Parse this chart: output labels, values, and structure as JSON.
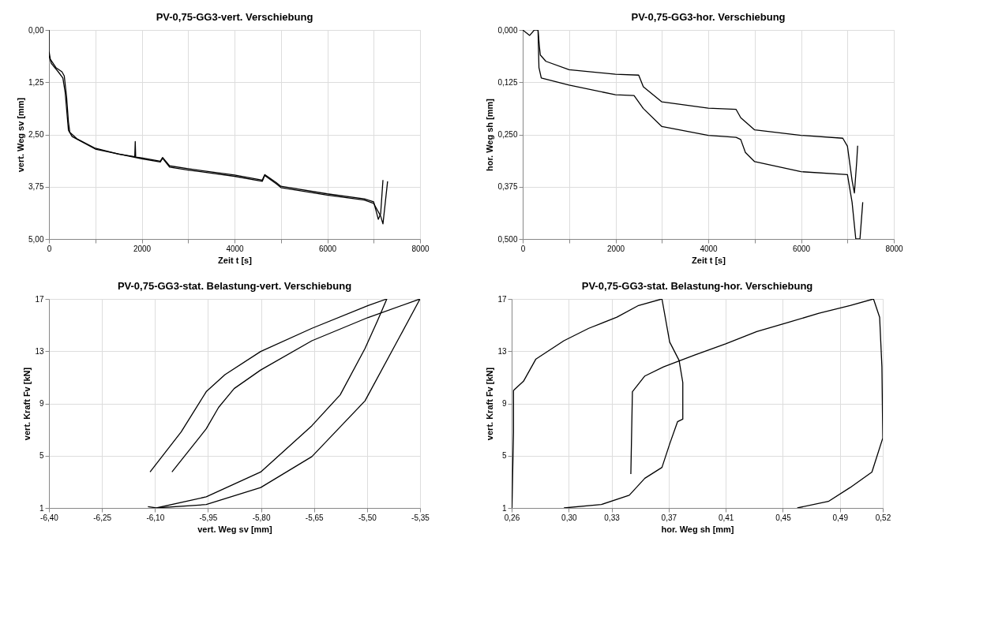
{
  "chart_data": [
    {
      "type": "line",
      "title": "PV-0,75-GG3-vert. Verschiebung",
      "xlabel": "Zeit t [s]",
      "ylabel": "vert. Weg sv [mm]",
      "xlim": [
        0,
        8000
      ],
      "ylim": [
        5,
        0
      ],
      "xticks": [
        0,
        {
          "value": 1000,
          "label": null
        },
        2000,
        {
          "value": 3000,
          "label": null
        },
        4000,
        {
          "value": 5000,
          "label": null
        },
        6000,
        {
          "value": 7000,
          "label": null
        },
        8000
      ],
      "yticks": [
        {
          "value": 0,
          "label": "0,00"
        },
        {
          "value": 1.25,
          "label": "1,25"
        },
        {
          "value": 2.5,
          "label": "2,50"
        },
        {
          "value": 3.75,
          "label": "3,75"
        },
        {
          "value": 5,
          "label": "5,00"
        }
      ],
      "grid": true,
      "series": [
        {
          "color": "#000000",
          "x": [
            0,
            0,
            30,
            150,
            280,
            330,
            380,
            420,
            450,
            600,
            1000,
            1500,
            1850,
            1860,
            1870,
            2000,
            2400,
            2450,
            2600,
            3000,
            4000,
            4600,
            4650,
            4900,
            5000,
            6000,
            6800,
            7000,
            7100,
            7150,
            7200
          ],
          "values": [
            0,
            0.5,
            0.7,
            0.9,
            1.0,
            1.1,
            1.6,
            2.2,
            2.45,
            2.6,
            2.83,
            2.97,
            3.03,
            2.67,
            3.04,
            3.06,
            3.14,
            3.05,
            3.25,
            3.32,
            3.47,
            3.59,
            3.46,
            3.65,
            3.74,
            3.92,
            4.04,
            4.11,
            4.53,
            4.4,
            3.59
          ]
        },
        {
          "color": "#000000",
          "x": [
            0,
            50,
            200,
            300,
            350,
            420,
            500,
            1000,
            2000,
            2400,
            2450,
            2600,
            3000,
            4000,
            4600,
            4650,
            4900,
            5000,
            6000,
            6800,
            7000,
            7150,
            7200,
            7300
          ],
          "values": [
            0.6,
            0.8,
            1.0,
            1.15,
            1.5,
            2.4,
            2.55,
            2.85,
            3.08,
            3.16,
            3.07,
            3.28,
            3.35,
            3.5,
            3.62,
            3.48,
            3.68,
            3.77,
            3.95,
            4.07,
            4.15,
            4.45,
            4.64,
            3.62
          ]
        }
      ]
    },
    {
      "type": "line",
      "title": "PV-0,75-GG3-hor. Verschiebung",
      "xlabel": "Zeit t  [s]",
      "ylabel": "hor. Weg sh [mm]",
      "xlim": [
        0,
        8000
      ],
      "ylim": [
        0.5,
        0
      ],
      "xticks": [
        0,
        {
          "value": 1000,
          "label": null
        },
        2000,
        {
          "value": 3000,
          "label": null
        },
        4000,
        {
          "value": 5000,
          "label": null
        },
        6000,
        {
          "value": 7000,
          "label": null
        },
        8000
      ],
      "yticks": [
        {
          "value": 0,
          "label": "0,000"
        },
        {
          "value": 0.125,
          "label": "0,125"
        },
        {
          "value": 0.25,
          "label": "0,250"
        },
        {
          "value": 0.375,
          "label": "0,375"
        },
        {
          "value": 0.5,
          "label": "0,500"
        }
      ],
      "grid": true,
      "series": [
        {
          "color": "#000000",
          "x": [
            0,
            150,
            250,
            330,
            360,
            380,
            500,
            1000,
            2000,
            2500,
            2600,
            3000,
            4000,
            4600,
            4700,
            5000,
            6000,
            6900,
            7000,
            7100,
            7150,
            7200,
            7220
          ],
          "values": [
            0,
            0.013,
            0,
            0,
            0.04,
            0.06,
            0.075,
            0.095,
            0.106,
            0.108,
            0.136,
            0.172,
            0.187,
            0.19,
            0.21,
            0.239,
            0.252,
            0.259,
            0.278,
            0.36,
            0.39,
            0.315,
            0.277
          ]
        },
        {
          "color": "#000000",
          "x": [
            330,
            350,
            400,
            1000,
            2000,
            2400,
            2600,
            3000,
            4000,
            4600,
            4700,
            4800,
            5000,
            6000,
            7000,
            7100,
            7180,
            7270,
            7330
          ],
          "values": [
            0,
            0.09,
            0.115,
            0.132,
            0.155,
            0.157,
            0.188,
            0.231,
            0.252,
            0.257,
            0.262,
            0.293,
            0.315,
            0.339,
            0.346,
            0.412,
            0.5,
            0.5,
            0.412
          ]
        }
      ]
    },
    {
      "type": "line",
      "title": "PV-0,75-GG3-stat. Belastung-vert. Verschiebung",
      "xlabel": "vert. Weg sv [mm]",
      "ylabel": "vert. Kraft Fv [kN]",
      "xlim": [
        -6.4,
        -5.35
      ],
      "ylim": [
        1,
        17
      ],
      "xticks": [
        {
          "value": -6.4,
          "label": "-6,40"
        },
        {
          "value": -6.25,
          "label": "-6,25"
        },
        {
          "value": -6.1,
          "label": "-6,10"
        },
        {
          "value": -5.95,
          "label": "-5,95"
        },
        {
          "value": -5.8,
          "label": "-5,80"
        },
        {
          "value": -5.65,
          "label": "-5,65"
        },
        {
          "value": -5.5,
          "label": "-5,50"
        },
        {
          "value": -5.35,
          "label": "-5,35"
        }
      ],
      "yticks": [
        1,
        5,
        9,
        13,
        17
      ],
      "grid": true,
      "series": [
        {
          "color": "#000000",
          "x": [
            -6.12,
            -6.096,
            -5.955,
            -5.801,
            -5.656,
            -5.576,
            -5.506,
            -5.471,
            -5.444,
            -5.497,
            -5.656,
            -5.801,
            -5.902,
            -5.955,
            -6.026,
            -6.114
          ],
          "values": [
            1.1,
            1,
            1.85,
            3.75,
            7.3,
            9.66,
            13.2,
            15.3,
            17,
            16.5,
            14.75,
            12.98,
            11.2,
            9.9,
            6.82,
            3.75
          ]
        },
        {
          "color": "#000000",
          "x": [
            -6.096,
            -5.955,
            -5.801,
            -5.656,
            -5.506,
            -5.409,
            -5.35,
            -5.497,
            -5.656,
            -5.801,
            -5.876,
            -5.92,
            -5.955,
            -6.052
          ],
          "values": [
            1,
            1.26,
            2.56,
            4.93,
            9.19,
            14.04,
            17,
            15.58,
            13.8,
            11.56,
            10.14,
            8.7,
            7.06,
            3.75
          ]
        }
      ]
    },
    {
      "type": "line",
      "title": "PV-0,75-GG3-stat. Belastung-hor. Verschiebung",
      "xlabel": "hor. Weg sh [mm]",
      "ylabel": "vert. Kraft Fv [kN]",
      "xlim": [
        0.26,
        0.52
      ],
      "ylim": [
        1,
        17
      ],
      "xticks": [
        {
          "value": 0.26,
          "label": "0,26"
        },
        {
          "value": 0.3,
          "label": "0,30"
        },
        {
          "value": 0.33,
          "label": "0,33"
        },
        {
          "value": 0.37,
          "label": "0,37"
        },
        {
          "value": 0.41,
          "label": "0,41"
        },
        {
          "value": 0.45,
          "label": "0,45"
        },
        {
          "value": 0.49,
          "label": "0,49"
        },
        {
          "value": 0.52,
          "label": "0,52"
        }
      ],
      "yticks": [
        1,
        5,
        9,
        13,
        17
      ],
      "grid": true,
      "series": [
        {
          "color": "#000000",
          "x": [
            0.2602,
            0.2613,
            0.2613,
            0.2683,
            0.277,
            0.2966,
            0.314,
            0.3337,
            0.3489,
            0.3653,
            0.3707,
            0.3773,
            0.3799,
            0.3799,
            0.3762,
            0.3707,
            0.3653,
            0.3533,
            0.3424,
            0.3228,
            0.2966
          ],
          "values": [
            1,
            6.8,
            10,
            10.7,
            12.4,
            13.8,
            14.75,
            15.6,
            16.5,
            17,
            13.7,
            12.3,
            10.6,
            7.8,
            7.6,
            5.9,
            4.1,
            3.27,
            1.97,
            1.26,
            1
          ]
        },
        {
          "color": "#000000",
          "x": [
            0.3435,
            0.3446,
            0.3533,
            0.3664,
            0.3882,
            0.41,
            0.4317,
            0.4535,
            0.4753,
            0.4971,
            0.5135,
            0.5178,
            0.5194,
            0.52,
            0.5124,
            0.4971,
            0.4819,
            0.4601
          ],
          "values": [
            3.6,
            9.9,
            11.1,
            11.8,
            12.7,
            13.57,
            14.5,
            15.2,
            15.9,
            16.5,
            17,
            15.6,
            11.8,
            6.35,
            3.75,
            2.56,
            1.5,
            1
          ]
        }
      ]
    }
  ]
}
